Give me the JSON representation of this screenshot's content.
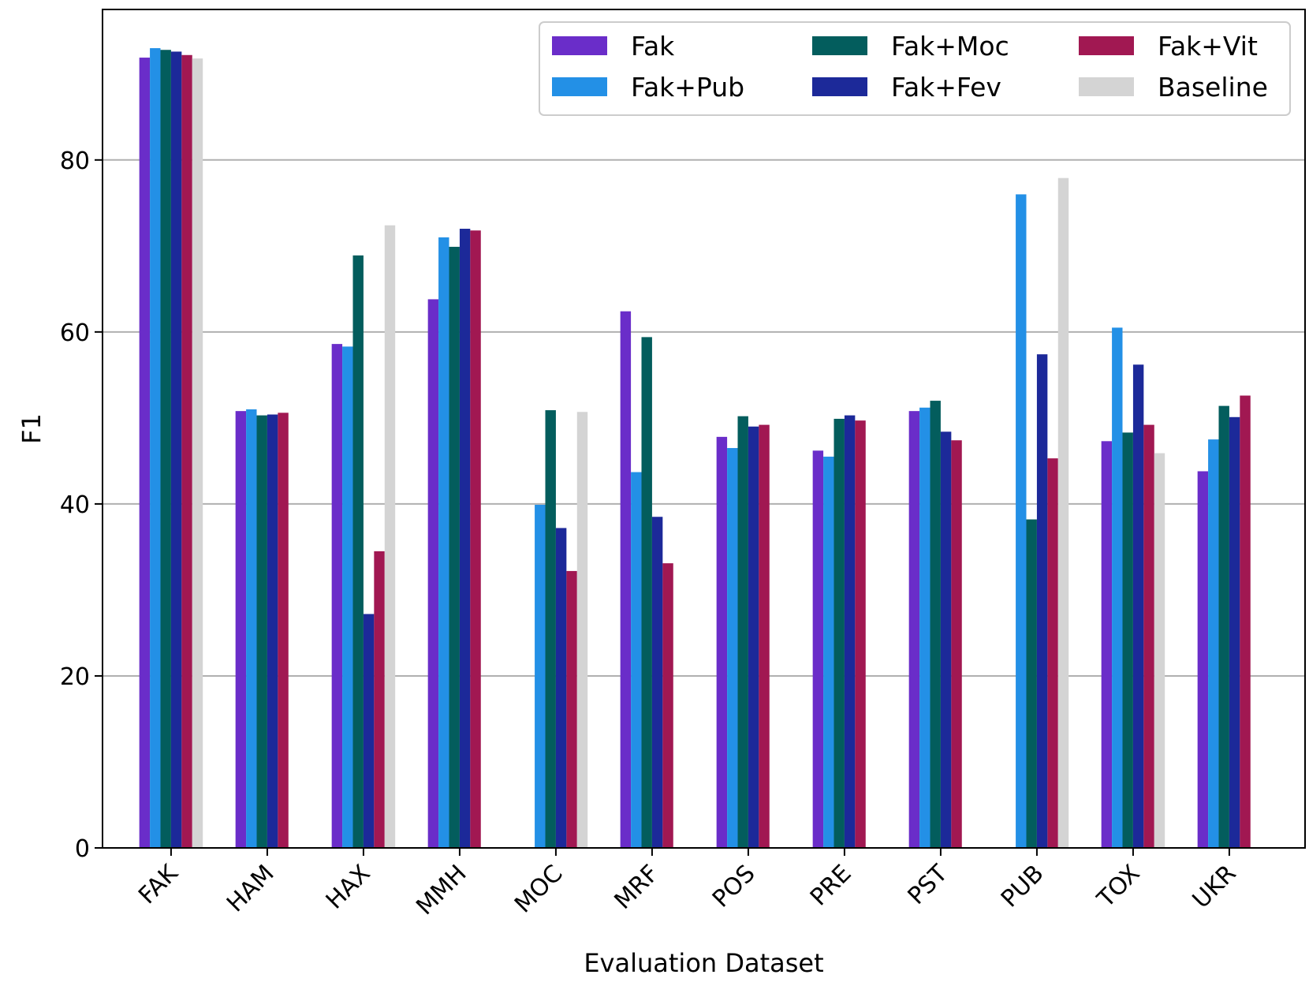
{
  "chart_data": {
    "type": "bar",
    "title": "",
    "xlabel": "Evaluation Dataset",
    "ylabel": "F1",
    "ylim": [
      0,
      97.5
    ],
    "yticks": [
      0,
      20,
      40,
      60,
      80
    ],
    "grid": "y",
    "legend_position": "top-right",
    "categories": [
      "FAK",
      "HAM",
      "HAX",
      "MMH",
      "MOC",
      "MRF",
      "POS",
      "PRE",
      "PST",
      "PUB",
      "TOX",
      "UKR"
    ],
    "series": [
      {
        "name": "Fak",
        "color": "#6a2dc9",
        "values": [
          91.9,
          50.8,
          58.6,
          63.8,
          null,
          62.4,
          47.8,
          46.2,
          50.8,
          null,
          47.3,
          43.8
        ]
      },
      {
        "name": "Fak+Pub",
        "color": "#2390e6",
        "values": [
          93.0,
          51.0,
          58.3,
          71.0,
          39.9,
          43.7,
          46.5,
          45.5,
          51.2,
          76.0,
          60.5,
          47.5
        ]
      },
      {
        "name": "Fak+Moc",
        "color": "#035d5d",
        "values": [
          92.8,
          50.3,
          68.9,
          69.9,
          50.9,
          59.4,
          50.2,
          49.9,
          52.0,
          38.2,
          48.3,
          51.4
        ]
      },
      {
        "name": "Fak+Fev",
        "color": "#1c2999",
        "values": [
          92.6,
          50.4,
          27.2,
          72.0,
          37.2,
          38.5,
          49.0,
          50.3,
          48.4,
          57.4,
          56.2,
          50.1
        ]
      },
      {
        "name": "Fak+Vit",
        "color": "#a11852",
        "values": [
          92.2,
          50.6,
          34.5,
          71.8,
          32.2,
          33.1,
          49.2,
          49.7,
          47.4,
          45.3,
          49.2,
          52.6
        ]
      },
      {
        "name": "Baseline",
        "color": "#d4d4d4",
        "values": [
          91.8,
          null,
          72.4,
          null,
          50.7,
          null,
          null,
          null,
          null,
          77.9,
          45.9,
          null
        ]
      }
    ]
  }
}
